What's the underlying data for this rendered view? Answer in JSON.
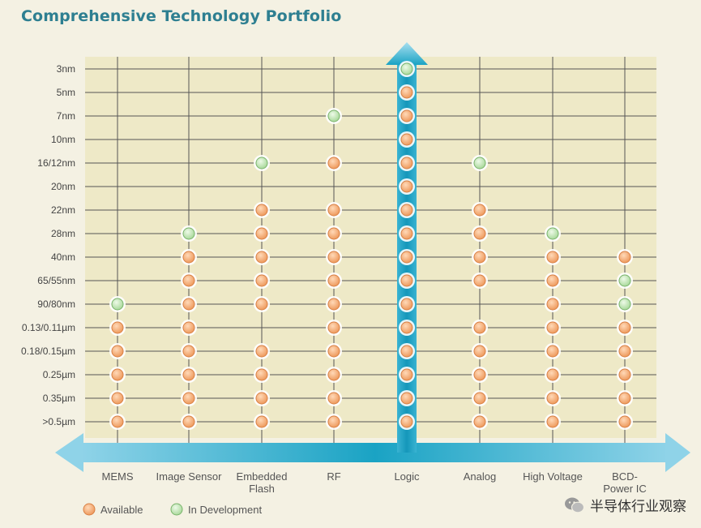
{
  "title": "Comprehensive Technology Portfolio",
  "watermark": "半导体行业观察",
  "colors": {
    "background": "#f4f1e3",
    "plot_background": "#eee9c7",
    "available": "#f1a46d",
    "in_development": "#b8e0ae",
    "logic_bar": "#1aa3c4",
    "arrow": "#62c0dc",
    "title": "#2e7f91"
  },
  "chart_data": {
    "type": "scatter",
    "title": "Comprehensive Technology Portfolio",
    "xlabel": "",
    "ylabel": "",
    "y_categories": [
      "3nm",
      "5nm",
      "7nm",
      "10nm",
      "16/12nm",
      "20nm",
      "22nm",
      "28nm",
      "40nm",
      "65/55nm",
      "90/80nm",
      "0.13/0.11µm",
      "0.18/0.15µm",
      "0.25µm",
      "0.35µm",
      ">0.5µm"
    ],
    "x_categories": [
      "MEMS",
      "Image Sensor",
      "Embedded Flash",
      "RF",
      "Logic",
      "Analog",
      "High Voltage",
      "BCD-Power IC"
    ],
    "x_category_lines": [
      [
        "MEMS"
      ],
      [
        "Image Sensor"
      ],
      [
        "Embedded",
        "Flash"
      ],
      [
        "RF"
      ],
      [
        "Logic"
      ],
      [
        "Analog"
      ],
      [
        "High Voltage"
      ],
      [
        "BCD-",
        "Power IC"
      ]
    ],
    "legend": [
      {
        "status": "available",
        "label": "Available"
      },
      {
        "status": "in_development",
        "label": "In Development"
      }
    ],
    "legend_position": "bottom-left",
    "grid": true,
    "series": [
      {
        "category": "MEMS",
        "points": [
          {
            "node": "90/80nm",
            "status": "in_development"
          },
          {
            "node": "0.13/0.11µm",
            "status": "available"
          },
          {
            "node": "0.18/0.15µm",
            "status": "available"
          },
          {
            "node": "0.25µm",
            "status": "available"
          },
          {
            "node": "0.35µm",
            "status": "available"
          },
          {
            "node": ">0.5µm",
            "status": "available"
          }
        ]
      },
      {
        "category": "Image Sensor",
        "points": [
          {
            "node": "28nm",
            "status": "in_development"
          },
          {
            "node": "40nm",
            "status": "available"
          },
          {
            "node": "65/55nm",
            "status": "available"
          },
          {
            "node": "90/80nm",
            "status": "available"
          },
          {
            "node": "0.13/0.11µm",
            "status": "available"
          },
          {
            "node": "0.18/0.15µm",
            "status": "available"
          },
          {
            "node": "0.25µm",
            "status": "available"
          },
          {
            "node": "0.35µm",
            "status": "available"
          },
          {
            "node": ">0.5µm",
            "status": "available"
          }
        ]
      },
      {
        "category": "Embedded Flash",
        "points": [
          {
            "node": "16/12nm",
            "status": "in_development"
          },
          {
            "node": "22nm",
            "status": "available"
          },
          {
            "node": "28nm",
            "status": "available"
          },
          {
            "node": "40nm",
            "status": "available"
          },
          {
            "node": "65/55nm",
            "status": "available"
          },
          {
            "node": "90/80nm",
            "status": "available"
          },
          {
            "node": "0.18/0.15µm",
            "status": "available"
          },
          {
            "node": "0.25µm",
            "status": "available"
          },
          {
            "node": "0.35µm",
            "status": "available"
          },
          {
            "node": ">0.5µm",
            "status": "available"
          }
        ]
      },
      {
        "category": "RF",
        "points": [
          {
            "node": "7nm",
            "status": "in_development"
          },
          {
            "node": "16/12nm",
            "status": "available"
          },
          {
            "node": "22nm",
            "status": "available"
          },
          {
            "node": "28nm",
            "status": "available"
          },
          {
            "node": "40nm",
            "status": "available"
          },
          {
            "node": "65/55nm",
            "status": "available"
          },
          {
            "node": "90/80nm",
            "status": "available"
          },
          {
            "node": "0.13/0.11µm",
            "status": "available"
          },
          {
            "node": "0.18/0.15µm",
            "status": "available"
          },
          {
            "node": "0.25µm",
            "status": "available"
          },
          {
            "node": "0.35µm",
            "status": "available"
          },
          {
            "node": ">0.5µm",
            "status": "available"
          }
        ]
      },
      {
        "category": "Logic",
        "points": [
          {
            "node": "3nm",
            "status": "in_development"
          },
          {
            "node": "5nm",
            "status": "available"
          },
          {
            "node": "7nm",
            "status": "available"
          },
          {
            "node": "10nm",
            "status": "available"
          },
          {
            "node": "16/12nm",
            "status": "available"
          },
          {
            "node": "20nm",
            "status": "available"
          },
          {
            "node": "22nm",
            "status": "available"
          },
          {
            "node": "28nm",
            "status": "available"
          },
          {
            "node": "40nm",
            "status": "available"
          },
          {
            "node": "65/55nm",
            "status": "available"
          },
          {
            "node": "90/80nm",
            "status": "available"
          },
          {
            "node": "0.13/0.11µm",
            "status": "available"
          },
          {
            "node": "0.18/0.15µm",
            "status": "available"
          },
          {
            "node": "0.25µm",
            "status": "available"
          },
          {
            "node": "0.35µm",
            "status": "available"
          },
          {
            "node": ">0.5µm",
            "status": "available"
          }
        ]
      },
      {
        "category": "Analog",
        "points": [
          {
            "node": "16/12nm",
            "status": "in_development"
          },
          {
            "node": "22nm",
            "status": "available"
          },
          {
            "node": "28nm",
            "status": "available"
          },
          {
            "node": "40nm",
            "status": "available"
          },
          {
            "node": "65/55nm",
            "status": "available"
          },
          {
            "node": "0.13/0.11µm",
            "status": "available"
          },
          {
            "node": "0.18/0.15µm",
            "status": "available"
          },
          {
            "node": "0.25µm",
            "status": "available"
          },
          {
            "node": "0.35µm",
            "status": "available"
          },
          {
            "node": ">0.5µm",
            "status": "available"
          }
        ]
      },
      {
        "category": "High Voltage",
        "points": [
          {
            "node": "28nm",
            "status": "in_development"
          },
          {
            "node": "40nm",
            "status": "available"
          },
          {
            "node": "65/55nm",
            "status": "available"
          },
          {
            "node": "90/80nm",
            "status": "available"
          },
          {
            "node": "0.13/0.11µm",
            "status": "available"
          },
          {
            "node": "0.18/0.15µm",
            "status": "available"
          },
          {
            "node": "0.25µm",
            "status": "available"
          },
          {
            "node": "0.35µm",
            "status": "available"
          },
          {
            "node": ">0.5µm",
            "status": "available"
          }
        ]
      },
      {
        "category": "BCD-Power IC",
        "points": [
          {
            "node": "40nm",
            "status": "available"
          },
          {
            "node": "65/55nm",
            "status": "in_development"
          },
          {
            "node": "90/80nm",
            "status": "in_development"
          },
          {
            "node": "0.13/0.11µm",
            "status": "available"
          },
          {
            "node": "0.18/0.15µm",
            "status": "available"
          },
          {
            "node": "0.25µm",
            "status": "available"
          },
          {
            "node": "0.35µm",
            "status": "available"
          },
          {
            "node": ">0.5µm",
            "status": "available"
          }
        ]
      }
    ]
  }
}
